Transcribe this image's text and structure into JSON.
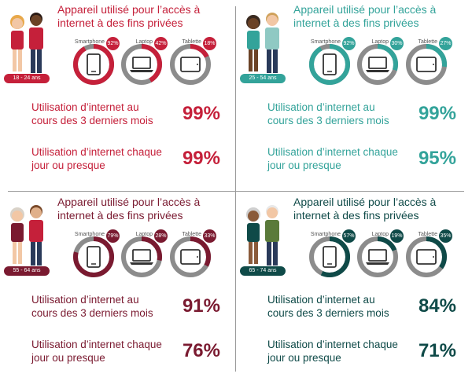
{
  "chart_data": [
    {
      "type": "table",
      "age_group": "18 - 24 ans",
      "title": "Appareil utilisé pour l’accès à internet à des fins privées",
      "color": "#c5203a",
      "devices": [
        {
          "label": "Smartphone",
          "value": "92%",
          "share": 0.92
        },
        {
          "label": "Laptop",
          "value": "42%",
          "share": 0.42
        },
        {
          "label": "Tablette",
          "value": "18%",
          "share": 0.18
        }
      ],
      "stats": [
        {
          "label": "Utilisation d’internet au cours des 3 derniers mois",
          "value": "99%"
        },
        {
          "label": "Utilisation d’internet chaque jour ou presque",
          "value": "99%"
        }
      ]
    },
    {
      "type": "table",
      "age_group": "25 - 54 ans",
      "title": "Appareil utilisé pour l’accès à internet à des fins privées",
      "color": "#33a39a",
      "devices": [
        {
          "label": "Smartphone",
          "value": "92%",
          "share": 0.92
        },
        {
          "label": "Laptop",
          "value": "30%",
          "share": 0.3
        },
        {
          "label": "Tablette",
          "value": "27%",
          "share": 0.27
        }
      ],
      "stats": [
        {
          "label": "Utilisation d’internet au cours des 3 derniers mois",
          "value": "99%"
        },
        {
          "label": "Utilisation d’internet chaque jour ou presque",
          "value": "95%"
        }
      ]
    },
    {
      "type": "table",
      "age_group": "55 - 64 ans",
      "title": "Appareil utilisé pour l’accès à internet à des fins privées",
      "color": "#7a1a30",
      "devices": [
        {
          "label": "Smartphone",
          "value": "79%",
          "share": 0.79
        },
        {
          "label": "Laptop",
          "value": "28%",
          "share": 0.28
        },
        {
          "label": "Tablette",
          "value": "33%",
          "share": 0.33
        }
      ],
      "stats": [
        {
          "label": "Utilisation d’internet au cours des 3 derniers mois",
          "value": "91%"
        },
        {
          "label": "Utilisation d’internet chaque jour ou presque",
          "value": "76%"
        }
      ]
    },
    {
      "type": "table",
      "age_group": "65 - 74 ans",
      "title": "Appareil utilisé pour l’accès à internet à des fins privées",
      "color": "#0f4a48",
      "devices": [
        {
          "label": "Smartphone",
          "value": "57%",
          "share": 0.57
        },
        {
          "label": "Laptop",
          "value": "19%",
          "share": 0.19
        },
        {
          "label": "Tablette",
          "value": "35%",
          "share": 0.35
        }
      ],
      "stats": [
        {
          "label": "Utilisation d’internet au cours des 3 derniers mois",
          "value": "84%"
        },
        {
          "label": "Utilisation d’internet chaque jour ou presque",
          "value": "71%"
        }
      ]
    }
  ],
  "icons": [
    "people-icon",
    "smartphone-icon",
    "laptop-icon",
    "tablet-icon"
  ]
}
